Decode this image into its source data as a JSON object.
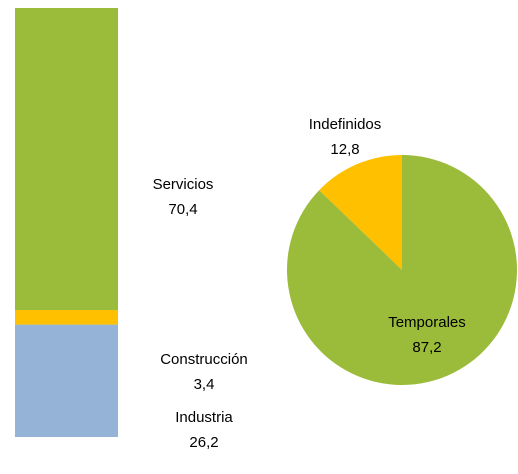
{
  "chart_data": [
    {
      "type": "stacked-bar",
      "series": [
        {
          "name": "Industria",
          "color": "#95b3d7",
          "values": [
            26.2
          ],
          "value_labels": [
            "26,2"
          ]
        },
        {
          "name": "Construcción",
          "color": "#ffc000",
          "values": [
            3.4
          ],
          "value_labels": [
            "3,4"
          ]
        },
        {
          "name": "Servicios",
          "color": "#9bbb3b",
          "values": [
            70.4
          ],
          "value_labels": [
            "70,4"
          ]
        }
      ]
    },
    {
      "type": "pie",
      "categories": [
        "Indefinidos",
        "Temporales"
      ],
      "values": [
        12.8,
        87.2
      ],
      "value_labels": [
        "12,8",
        "87,2"
      ],
      "colors": [
        "#ffc000",
        "#9bbb3b"
      ]
    }
  ]
}
